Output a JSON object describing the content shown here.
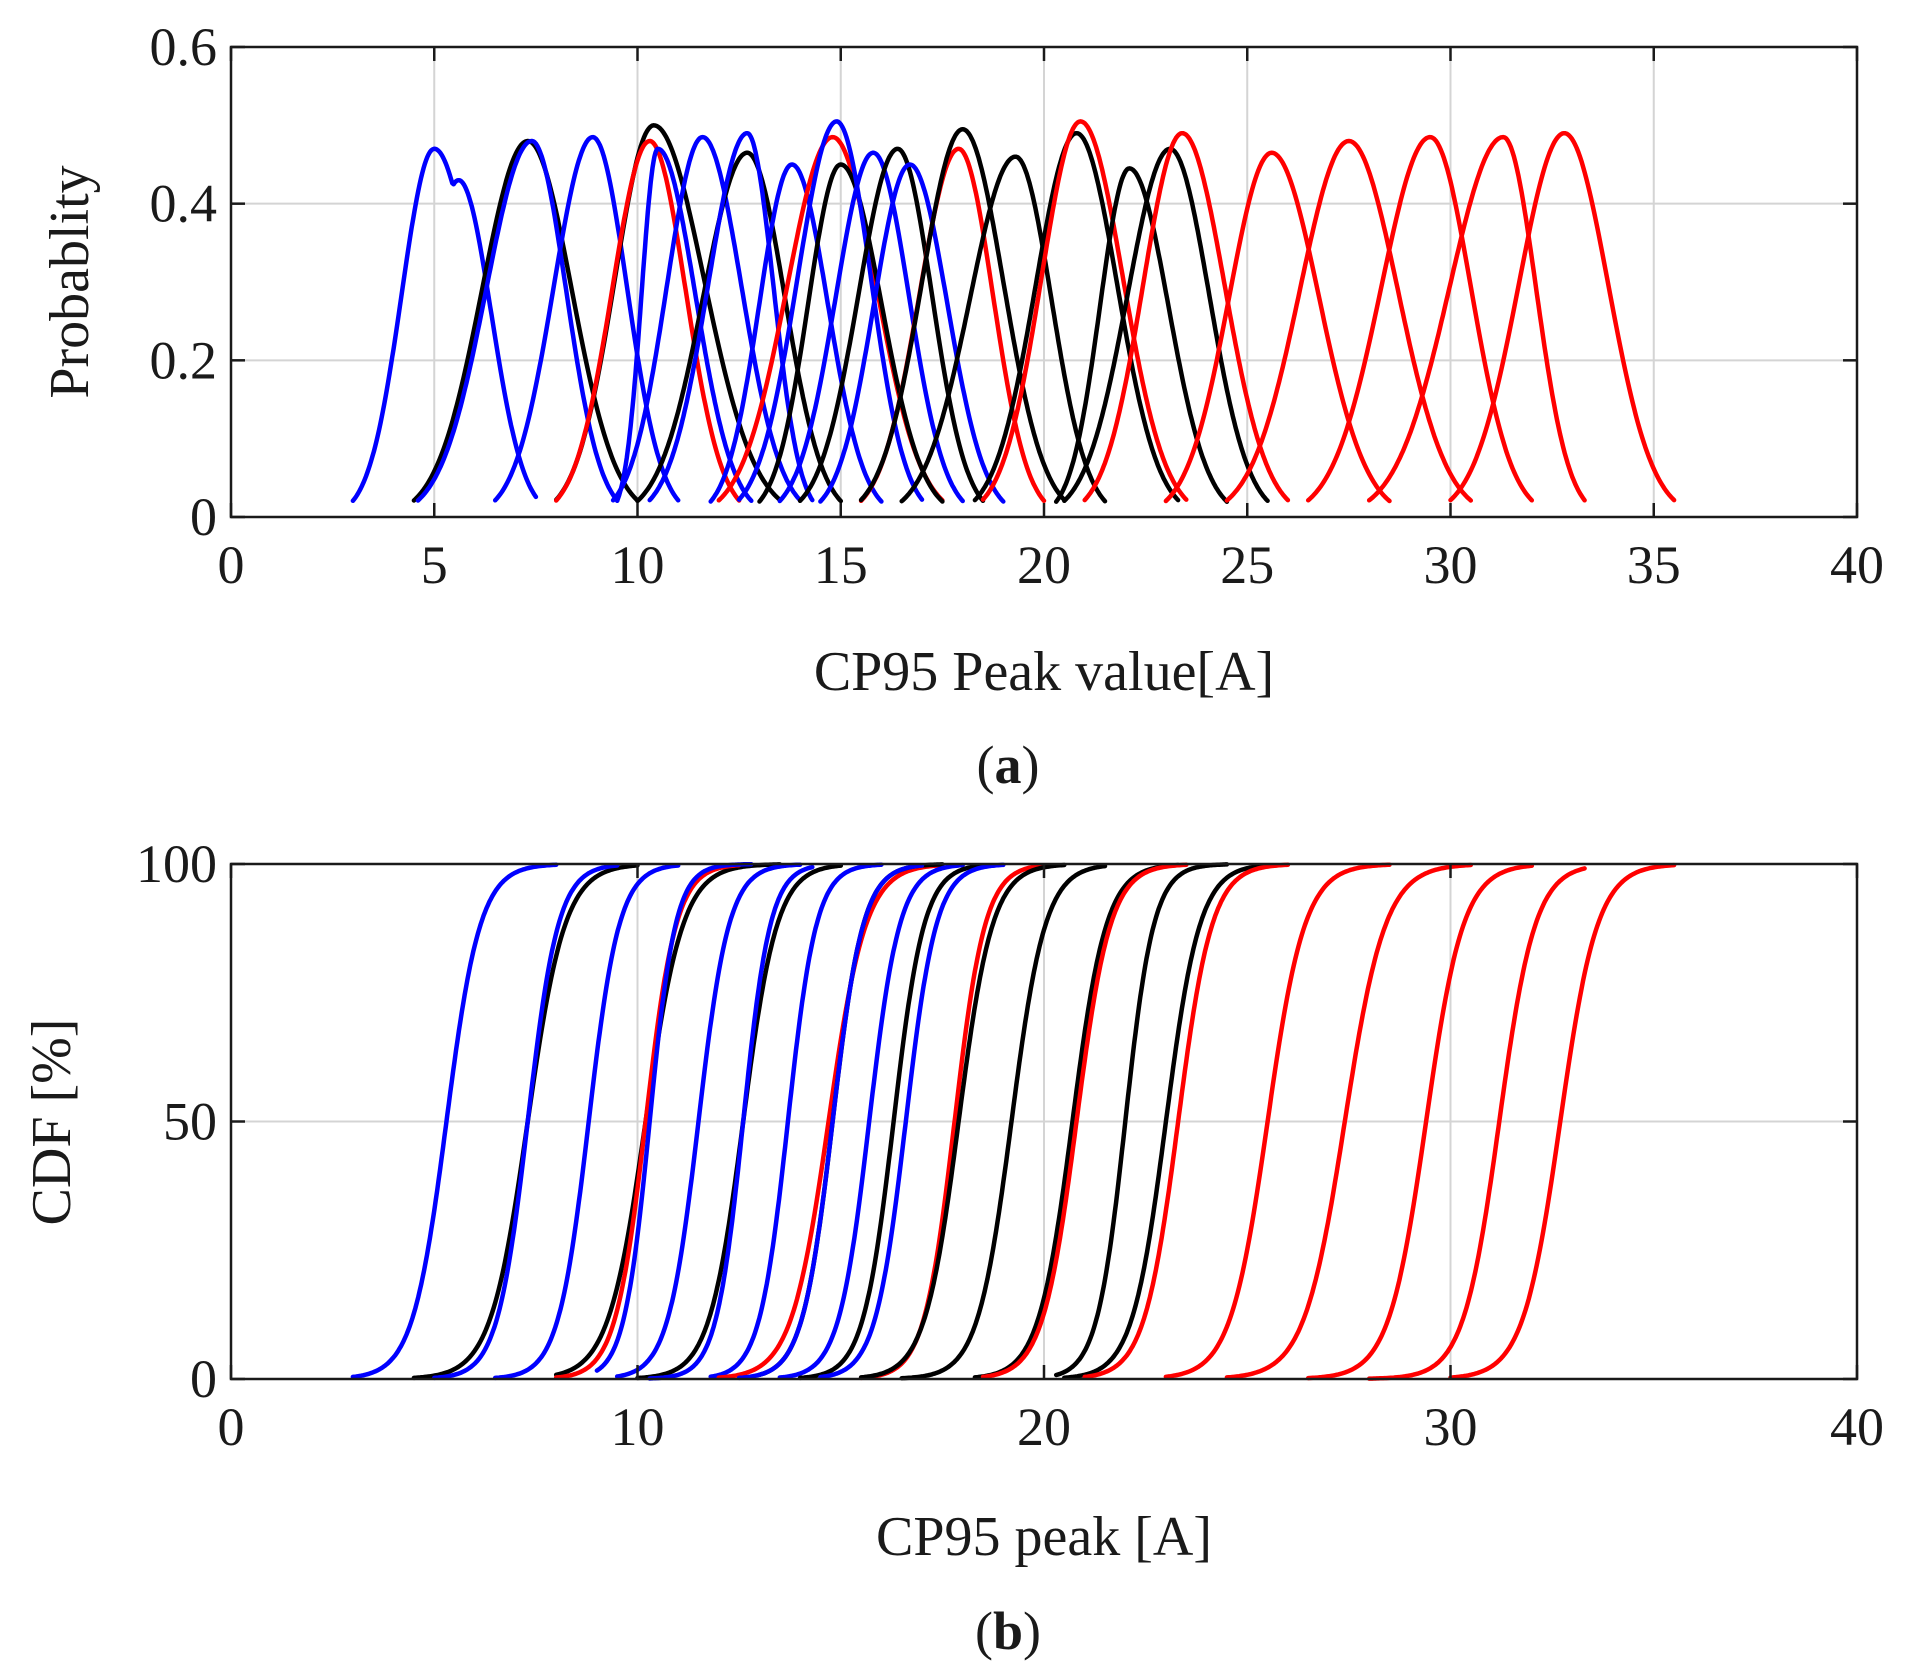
{
  "colors": {
    "black": "#000000",
    "red": "#ff0000",
    "blue": "#0000ff"
  },
  "chart_data": [
    {
      "panel": "(a)",
      "panel_letter": "a",
      "type": "line",
      "subtype": "probability density",
      "xlabel": "CP95 Peak value[A]",
      "ylabel": "Probablity",
      "xlim": [
        0,
        40
      ],
      "ylim": [
        0,
        0.6
      ],
      "xticks": [
        0,
        5,
        10,
        15,
        20,
        25,
        30,
        35,
        40
      ],
      "yticks": [
        0,
        0.2,
        0.4,
        0.6
      ],
      "xtick_labels": [
        "0",
        "5",
        "10",
        "15",
        "20",
        "25",
        "30",
        "35",
        "40"
      ],
      "ytick_labels": [
        "0",
        "0.2",
        "0.4",
        "0.6"
      ],
      "grid": true,
      "series": [
        {
          "color": "blue",
          "peak_x": 5.0,
          "peak_y": 0.47,
          "x_min": 3.0,
          "x_max": 7.5,
          "shoulder_x": 5.6,
          "shoulder_y": 0.43
        },
        {
          "color": "black",
          "peak_x": 7.3,
          "peak_y": 0.48,
          "x_min": 4.5,
          "x_max": 10.0
        },
        {
          "color": "blue",
          "peak_x": 7.4,
          "peak_y": 0.48,
          "x_min": 4.6,
          "x_max": 9.5
        },
        {
          "color": "blue",
          "peak_x": 8.9,
          "peak_y": 0.485,
          "x_min": 6.5,
          "x_max": 11.0
        },
        {
          "color": "black",
          "peak_x": 10.4,
          "peak_y": 0.5,
          "x_min": 8.0,
          "x_max": 13.5
        },
        {
          "color": "red",
          "peak_x": 10.3,
          "peak_y": 0.48,
          "x_min": 8.0,
          "x_max": 12.5
        },
        {
          "color": "blue",
          "peak_x": 10.5,
          "peak_y": 0.47,
          "x_min": 9.5,
          "x_max": 12.8
        },
        {
          "color": "blue",
          "peak_x": 11.6,
          "peak_y": 0.485,
          "x_min": 9.4,
          "x_max": 14.0
        },
        {
          "color": "black",
          "peak_x": 12.7,
          "peak_y": 0.465,
          "x_min": 10.0,
          "x_max": 15.0
        },
        {
          "color": "blue",
          "peak_x": 12.7,
          "peak_y": 0.49,
          "x_min": 10.3,
          "x_max": 14.3
        },
        {
          "color": "blue",
          "peak_x": 13.8,
          "peak_y": 0.45,
          "x_min": 11.8,
          "x_max": 16.0
        },
        {
          "color": "red",
          "peak_x": 14.8,
          "peak_y": 0.485,
          "x_min": 12.0,
          "x_max": 17.5
        },
        {
          "color": "black",
          "peak_x": 15.0,
          "peak_y": 0.45,
          "x_min": 13.0,
          "x_max": 17.5
        },
        {
          "color": "blue",
          "peak_x": 14.9,
          "peak_y": 0.505,
          "x_min": 12.5,
          "x_max": 17.0
        },
        {
          "color": "blue",
          "peak_x": 15.8,
          "peak_y": 0.465,
          "x_min": 13.5,
          "x_max": 18.0
        },
        {
          "color": "black",
          "peak_x": 16.4,
          "peak_y": 0.47,
          "x_min": 14.0,
          "x_max": 18.5
        },
        {
          "color": "blue",
          "peak_x": 16.7,
          "peak_y": 0.45,
          "x_min": 14.5,
          "x_max": 19.0
        },
        {
          "color": "red",
          "peak_x": 17.9,
          "peak_y": 0.47,
          "x_min": 15.5,
          "x_max": 20.0
        },
        {
          "color": "black",
          "peak_x": 18.0,
          "peak_y": 0.495,
          "x_min": 15.5,
          "x_max": 20.5
        },
        {
          "color": "black",
          "peak_x": 19.3,
          "peak_y": 0.46,
          "x_min": 16.5,
          "x_max": 21.5
        },
        {
          "color": "black",
          "peak_x": 20.8,
          "peak_y": 0.49,
          "x_min": 18.3,
          "x_max": 23.3
        },
        {
          "color": "red",
          "peak_x": 20.9,
          "peak_y": 0.505,
          "x_min": 18.5,
          "x_max": 23.5
        },
        {
          "color": "black",
          "peak_x": 22.1,
          "peak_y": 0.445,
          "x_min": 20.3,
          "x_max": 24.5
        },
        {
          "color": "black",
          "peak_x": 23.1,
          "peak_y": 0.47,
          "x_min": 20.5,
          "x_max": 25.5
        },
        {
          "color": "red",
          "peak_x": 23.4,
          "peak_y": 0.49,
          "x_min": 21.0,
          "x_max": 26.0
        },
        {
          "color": "red",
          "peak_x": 25.6,
          "peak_y": 0.465,
          "x_min": 23.0,
          "x_max": 28.5
        },
        {
          "color": "red",
          "peak_x": 27.5,
          "peak_y": 0.48,
          "x_min": 24.5,
          "x_max": 30.5
        },
        {
          "color": "red",
          "peak_x": 29.5,
          "peak_y": 0.485,
          "x_min": 26.5,
          "x_max": 32.0
        },
        {
          "color": "red",
          "peak_x": 31.3,
          "peak_y": 0.485,
          "x_min": 28.0,
          "x_max": 33.3
        },
        {
          "color": "red",
          "peak_x": 32.8,
          "peak_y": 0.49,
          "x_min": 30.0,
          "x_max": 35.5
        }
      ]
    },
    {
      "panel": "(b)",
      "panel_letter": "b",
      "type": "line",
      "subtype": "cumulative distribution",
      "xlabel": "CP95 peak [A]",
      "ylabel": "CDF [%]",
      "xlim": [
        0,
        40
      ],
      "ylim": [
        0,
        100
      ],
      "xticks": [
        0,
        10,
        20,
        30,
        40
      ],
      "yticks": [
        0,
        50,
        100
      ],
      "xtick_labels": [
        "0",
        "10",
        "20",
        "30",
        "40"
      ],
      "ytick_labels": [
        "0",
        "50",
        "100"
      ],
      "grid": true,
      "series": [
        {
          "color": "blue",
          "median": 5.3,
          "x_min": 3.0,
          "x_max": 8.0,
          "thin": true
        },
        {
          "color": "black",
          "median": 7.3,
          "x_min": 4.5,
          "x_max": 10.0
        },
        {
          "color": "blue",
          "median": 7.3,
          "x_min": 5.0,
          "x_max": 9.5
        },
        {
          "color": "blue",
          "median": 8.8,
          "x_min": 6.5,
          "x_max": 11.0
        },
        {
          "color": "black",
          "median": 10.2,
          "x_min": 8.0,
          "x_max": 13.5
        },
        {
          "color": "red",
          "median": 10.2,
          "x_min": 8.0,
          "x_max": 12.5
        },
        {
          "color": "blue",
          "median": 10.3,
          "x_min": 9.0,
          "x_max": 12.8
        },
        {
          "color": "blue",
          "median": 11.5,
          "x_min": 9.5,
          "x_max": 14.0
        },
        {
          "color": "black",
          "median": 12.6,
          "x_min": 10.0,
          "x_max": 15.0
        },
        {
          "color": "blue",
          "median": 12.6,
          "x_min": 10.3,
          "x_max": 14.3
        },
        {
          "color": "blue",
          "median": 13.7,
          "x_min": 11.8,
          "x_max": 16.0
        },
        {
          "color": "red",
          "median": 14.7,
          "x_min": 12.0,
          "x_max": 17.5
        },
        {
          "color": "black",
          "median": 14.8,
          "x_min": 13.0,
          "x_max": 17.5
        },
        {
          "color": "blue",
          "median": 14.8,
          "x_min": 12.5,
          "x_max": 17.0
        },
        {
          "color": "blue",
          "median": 15.7,
          "x_min": 13.5,
          "x_max": 18.0
        },
        {
          "color": "black",
          "median": 16.3,
          "x_min": 14.0,
          "x_max": 18.5
        },
        {
          "color": "blue",
          "median": 16.6,
          "x_min": 14.5,
          "x_max": 19.0
        },
        {
          "color": "red",
          "median": 17.8,
          "x_min": 15.5,
          "x_max": 20.0
        },
        {
          "color": "black",
          "median": 17.9,
          "x_min": 15.5,
          "x_max": 20.5
        },
        {
          "color": "black",
          "median": 19.2,
          "x_min": 16.5,
          "x_max": 21.5
        },
        {
          "color": "black",
          "median": 20.7,
          "x_min": 18.3,
          "x_max": 23.3
        },
        {
          "color": "red",
          "median": 20.8,
          "x_min": 18.5,
          "x_max": 23.5
        },
        {
          "color": "black",
          "median": 22.0,
          "x_min": 20.3,
          "x_max": 24.5
        },
        {
          "color": "black",
          "median": 23.0,
          "x_min": 20.5,
          "x_max": 25.5
        },
        {
          "color": "red",
          "median": 23.3,
          "x_min": 21.0,
          "x_max": 26.0
        },
        {
          "color": "red",
          "median": 25.5,
          "x_min": 23.0,
          "x_max": 28.5
        },
        {
          "color": "red",
          "median": 27.4,
          "x_min": 24.5,
          "x_max": 30.5
        },
        {
          "color": "red",
          "median": 29.4,
          "x_min": 26.5,
          "x_max": 32.0
        },
        {
          "color": "red",
          "median": 31.2,
          "x_min": 28.0,
          "x_max": 33.3
        },
        {
          "color": "red",
          "median": 32.7,
          "x_min": 30.0,
          "x_max": 35.5
        }
      ]
    }
  ]
}
